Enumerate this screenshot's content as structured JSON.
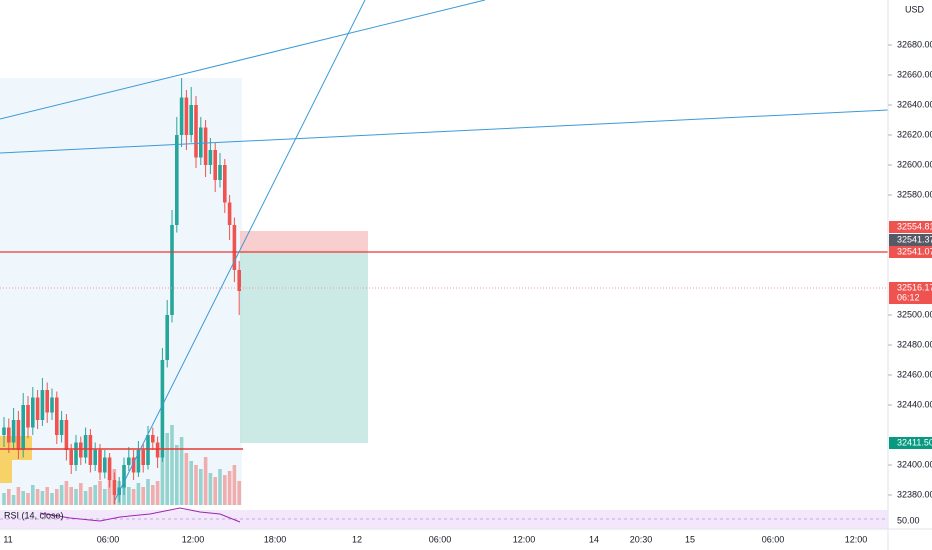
{
  "chart_data": {
    "type": "candlestick",
    "currency": "USD",
    "indicator": "RSI (14, close)",
    "indicator_level": "50.00",
    "open": [
      32420,
      32425,
      32415,
      32430,
      32410,
      32440,
      32425,
      32445,
      32430,
      32450,
      32435,
      32445,
      32420,
      32430,
      32410,
      32400,
      32415,
      32405,
      32420,
      32400,
      32410,
      32395,
      32405,
      32390,
      32380,
      32385,
      32400,
      32405,
      32395,
      32410,
      32400,
      32420,
      32415,
      32405,
      32470,
      32500,
      32560,
      32620,
      32645,
      32620,
      32640,
      32605,
      32625,
      32600,
      32610,
      32590,
      32600,
      32575,
      32560,
      32530
    ],
    "high": [
      32432,
      32431,
      32438,
      32436,
      32448,
      32446,
      32452,
      32450,
      32458,
      32455,
      32451,
      32449,
      32436,
      32434,
      32414,
      32420,
      32419,
      32425,
      32424,
      32415,
      32414,
      32410,
      32408,
      32395,
      32392,
      32405,
      32412,
      32410,
      32416,
      32414,
      32426,
      32425,
      32419,
      32478,
      32510,
      32570,
      32632,
      32658,
      32650,
      32652,
      32646,
      32632,
      32630,
      32618,
      32615,
      32608,
      32604,
      32580,
      32565,
      32536
    ],
    "low": [
      32412,
      32408,
      32410,
      32404,
      32405,
      32418,
      32420,
      32424,
      32426,
      32428,
      32430,
      32414,
      32415,
      32403,
      32394,
      32396,
      32400,
      32401,
      32395,
      32396,
      32390,
      32391,
      32385,
      32374,
      32375,
      32380,
      32396,
      32390,
      32392,
      32395,
      32397,
      32410,
      32398,
      32402,
      32465,
      32495,
      32555,
      32612,
      32610,
      32615,
      32598,
      32600,
      32592,
      32594,
      32582,
      32585,
      32568,
      32550,
      32522,
      32500
    ],
    "close": [
      32425,
      32415,
      32430,
      32410,
      32440,
      32425,
      32445,
      32430,
      32450,
      32435,
      32445,
      32420,
      32430,
      32410,
      32400,
      32415,
      32405,
      32420,
      32400,
      32410,
      32395,
      32405,
      32390,
      32380,
      32385,
      32400,
      32405,
      32395,
      32410,
      32400,
      32420,
      32415,
      32405,
      32470,
      32500,
      32560,
      32620,
      32645,
      32620,
      32640,
      32605,
      32625,
      32600,
      32610,
      32590,
      32600,
      32575,
      32560,
      32530,
      32516
    ],
    "volume": [
      6,
      8,
      5,
      9,
      7,
      6,
      10,
      8,
      7,
      9,
      6,
      8,
      10,
      12,
      9,
      8,
      11,
      7,
      9,
      10,
      12,
      8,
      14,
      18,
      12,
      10,
      9,
      8,
      11,
      9,
      13,
      10,
      12,
      28,
      36,
      40,
      30,
      34,
      26,
      22,
      20,
      18,
      24,
      16,
      14,
      18,
      15,
      17,
      20,
      12
    ],
    "volume_lim": [
      0,
      60
    ],
    "up_color": "#26a69a",
    "down_color": "#ef5350",
    "ylim": [
      32365,
      32700
    ],
    "yticks": [
      32680,
      32660,
      32640,
      32620,
      32600,
      32580,
      32500,
      32480,
      32460,
      32440,
      32400,
      32380
    ],
    "ytick_labels": [
      "32680.00",
      "32660.00",
      "32640.00",
      "32620.00",
      "32600.00",
      "32580.00",
      "32500.00",
      "32480.00",
      "32460.00",
      "32440.00",
      "32400.00",
      "32380.00"
    ],
    "xlabels": [
      "11",
      "06:00",
      "12:00",
      "18:00",
      "12",
      "06:00",
      "12:00",
      "14",
      "20:30",
      "15",
      "06:00",
      "12:00"
    ],
    "price_labels": [
      {
        "value": 32554.81,
        "label": "32554.81",
        "color": "#ef5350"
      },
      {
        "value": 32541.37,
        "label": "32541.37",
        "color": "#555a66"
      },
      {
        "value": 32541.07,
        "label": "32541.07",
        "color": "#ef5350"
      },
      {
        "value": 32516.17,
        "label": "32516.17",
        "color": "#ef5350",
        "timer": "06:12"
      },
      {
        "value": 32411.5,
        "label": "32411.50",
        "color": "#089981"
      }
    ]
  }
}
